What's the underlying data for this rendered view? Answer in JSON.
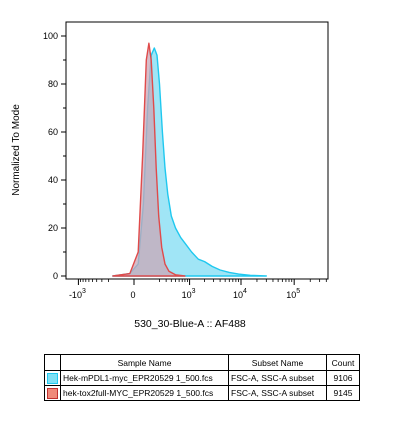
{
  "chart_data": {
    "type": "histogram",
    "xlabel": "530_30-Blue-A :: AF488",
    "ylabel": "Normalized To Mode",
    "ylim": [
      0,
      100
    ],
    "y_ticks": [
      {
        "value": 0,
        "label": "0"
      },
      {
        "value": 20,
        "label": "20"
      },
      {
        "value": 40,
        "label": "40"
      },
      {
        "value": 60,
        "label": "60"
      },
      {
        "value": 80,
        "label": "80"
      },
      {
        "value": 100,
        "label": "100"
      }
    ],
    "x_scale": "biexponential",
    "x_ticks": [
      {
        "value": -1000,
        "base": "-10",
        "exp": "3"
      },
      {
        "value": 0,
        "base": "0",
        "exp": ""
      },
      {
        "value": 1000,
        "base": "10",
        "exp": "3"
      },
      {
        "value": 10000,
        "base": "10",
        "exp": "4"
      },
      {
        "value": 100000,
        "base": "10",
        "exp": "5"
      }
    ],
    "grid": false,
    "series": [
      {
        "name": "Hek-mPDL1-myc_EPR20529 1_500.fcs",
        "fill": "#8fe1f5",
        "stroke": "#1fc8ef",
        "points": [
          [
            -150,
            0
          ],
          [
            -20,
            1
          ],
          [
            20,
            5
          ],
          [
            50,
            30
          ],
          [
            80,
            70
          ],
          [
            110,
            92
          ],
          [
            140,
            95
          ],
          [
            170,
            92
          ],
          [
            200,
            80
          ],
          [
            240,
            60
          ],
          [
            280,
            45
          ],
          [
            330,
            34
          ],
          [
            400,
            25
          ],
          [
            500,
            20
          ],
          [
            650,
            16
          ],
          [
            850,
            13
          ],
          [
            1100,
            10
          ],
          [
            1500,
            7
          ],
          [
            2000,
            6
          ],
          [
            2800,
            4
          ],
          [
            4000,
            2.5
          ],
          [
            6000,
            1.5
          ],
          [
            9000,
            0.8
          ],
          [
            15000,
            0.3
          ],
          [
            30000,
            0
          ]
        ]
      },
      {
        "name": "hek-tox2full-MYC_EPR20529 1_500.fcs",
        "fill": "#c9a7b7",
        "stroke": "#e04a4a",
        "points": [
          [
            -150,
            0
          ],
          [
            -20,
            1
          ],
          [
            20,
            10
          ],
          [
            45,
            50
          ],
          [
            70,
            90
          ],
          [
            90,
            97
          ],
          [
            110,
            90
          ],
          [
            135,
            70
          ],
          [
            160,
            45
          ],
          [
            190,
            25
          ],
          [
            230,
            12
          ],
          [
            280,
            5
          ],
          [
            350,
            2
          ],
          [
            500,
            0.5
          ],
          [
            800,
            0
          ]
        ]
      }
    ]
  },
  "legend": {
    "headers": {
      "sample": "Sample Name",
      "subset": "Subset Name",
      "count": "Count"
    },
    "rows": [
      {
        "color": "#7ee0f5",
        "border": "#1fc8ef",
        "sample": "Hek-mPDL1-myc_EPR20529 1_500.fcs",
        "subset": "FSC-A, SSC-A subset",
        "count": "9106"
      },
      {
        "color": "#f08a7a",
        "border": "#c03030",
        "sample": "hek-tox2full-MYC_EPR20529 1_500.fcs",
        "subset": "FSC-A, SSC-A subset",
        "count": "9145"
      }
    ]
  }
}
